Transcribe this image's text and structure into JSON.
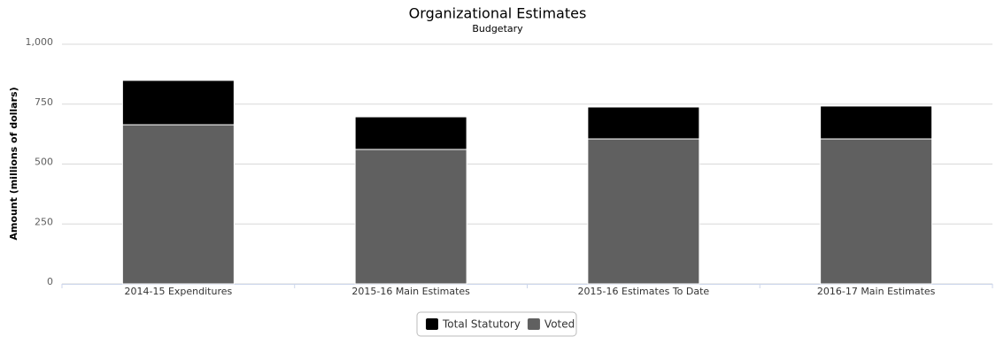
{
  "chart_data": {
    "type": "bar",
    "stacked": true,
    "title": "Organizational Estimates",
    "subtitle": "Budgetary",
    "y_axis_label": "Amount (millions of dollars)",
    "categories": [
      "2014-15 Expenditures",
      "2015-16 Main Estimates",
      "2015-16 Estimates To Date",
      "2016-17 Main Estimates"
    ],
    "series": [
      {
        "name": "Total Statutory",
        "color": "#000000",
        "values": [
          185,
          136,
          133,
          137
        ]
      },
      {
        "name": "Voted",
        "color": "#606060",
        "values": [
          664,
          561,
          605,
          605
        ]
      }
    ],
    "ylim": [
      0,
      1000
    ],
    "yticks": [
      0,
      250,
      500,
      750,
      {
        "value": 1000,
        "label": "1,000"
      }
    ],
    "grid": true
  }
}
